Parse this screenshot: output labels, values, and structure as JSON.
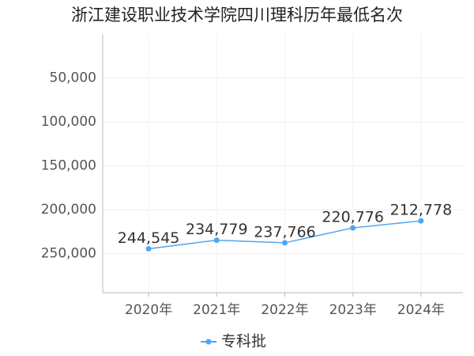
{
  "chart_data": {
    "type": "line",
    "title": "浙江建设职业技术学院四川理科历年最低名次",
    "categories": [
      "2020年",
      "2021年",
      "2022年",
      "2023年",
      "2024年"
    ],
    "series": [
      {
        "name": "专科批",
        "color": "#4da6f5",
        "values": [
          244545,
          234779,
          237766,
          220776,
          212778
        ],
        "value_labels": [
          "244,545",
          "234,779",
          "237,766",
          "220,776",
          "212,778"
        ]
      }
    ],
    "ylim": [
      0,
      300000
    ],
    "y_inverted": true,
    "yticks": [
      {
        "value": 50000,
        "label": "50,000"
      },
      {
        "value": 100000,
        "label": "100,000"
      },
      {
        "value": 150000,
        "label": "150,000"
      },
      {
        "value": 200000,
        "label": "200,000"
      },
      {
        "value": 250000,
        "label": "250,000"
      }
    ],
    "grid": true,
    "legend": "bottom"
  }
}
